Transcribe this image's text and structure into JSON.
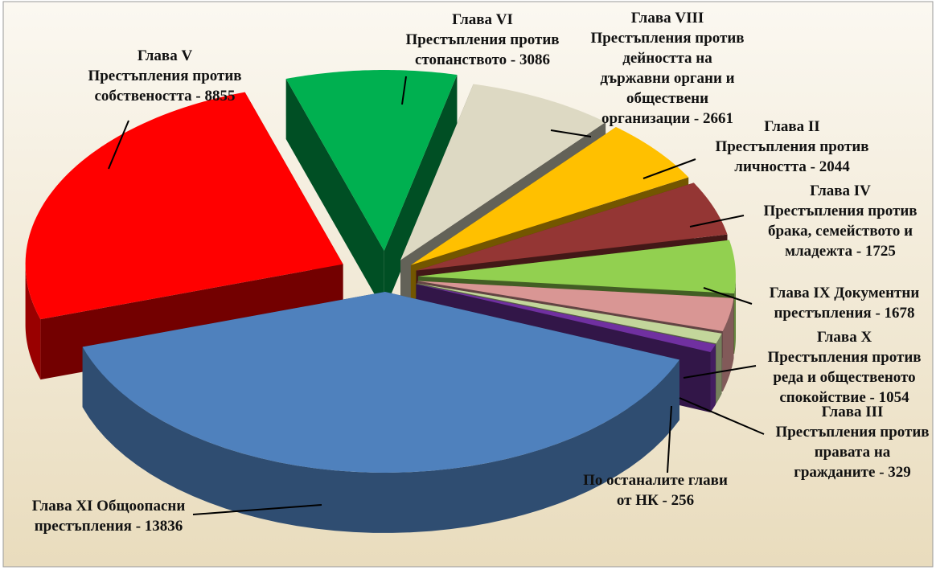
{
  "chart_data": {
    "type": "pie3d",
    "categories": [
      "Глава VI\nПрестъпления против\nстопанството - 3086",
      "Глава VIII\nПрестъпления против\nдейността на\nдържавни органи и\nобществени\nорганизации - 2661",
      "Глава II\nПрестъпления против\nличността - 2044",
      "Глава IV\nПрестъпления против\nбрака, семейството и\nмладежта - 1725",
      "Глава IX Документни\nпрестъпления - 1678",
      "Глава X\nПрестъпления против\nреда и общественото\nспокойствие - 1054",
      "Глава III\nПрестъпления против\nправата на\nгражданите - 329",
      "По останалите глави\nот НК - 256",
      "Глава XI Общоопасни\nпрестъпления - 13836",
      "Глава V\nПрестъпления против\nсобствеността - 8855"
    ],
    "values": [
      3086,
      2661,
      2044,
      1725,
      1678,
      1054,
      329,
      256,
      13836,
      8855
    ],
    "colors": [
      "#00b050",
      "#ddd9c3",
      "#ffc000",
      "#943634",
      "#92d050",
      "#d99694",
      "#c3d69b",
      "#7030a0",
      "#4f81bd",
      "#ff0000"
    ]
  }
}
